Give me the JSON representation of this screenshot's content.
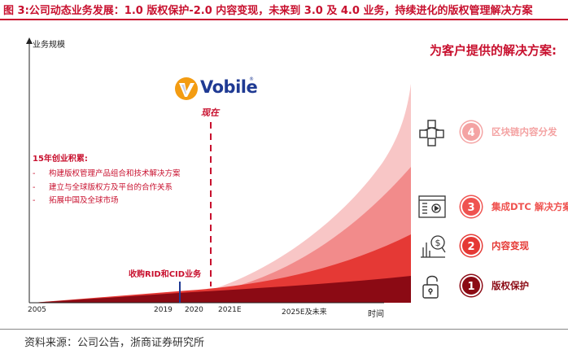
{
  "figure_title": "图 3:公司动态业务发展：1.0 版权保护-2.0 内容变现，未来到 3.0 及 4.0 业务，持续进化的版权管理解决方案",
  "source": "资料来源：公司公告，浙商证券研究所",
  "logo_text": "Vobile",
  "logo_reg": "®",
  "colors": {
    "brand_red": "#c8102e",
    "dark_red": "#8b0a14",
    "logo_blue": "#1f3a93",
    "logo_orange": "#f39c12"
  },
  "chart": {
    "y_label": "业务规模",
    "x_unit": "时间",
    "x_ticks": [
      "2005",
      "2019",
      "2020",
      "2021E",
      "2025E及未来"
    ],
    "now_label": "现在",
    "acquisition_label": "收购RID和CID业务"
  },
  "accumulation": {
    "title": "15年创业积累:",
    "items": [
      "构建版权管理产品组合和技术解决方案",
      "建立与全球版权方及平台的合作关系",
      "拓展中国及全球市场"
    ]
  },
  "solutions": {
    "title": "为客户提供的解决方案:",
    "items": [
      {
        "number": "4",
        "label": "区块链内容分发",
        "icon": "blockchain-cubes-icon",
        "color": "#f4a3a3"
      },
      {
        "number": "3",
        "label": "集成DTC 解决方案",
        "icon": "browser-play-icon",
        "color": "#ef5350"
      },
      {
        "number": "2",
        "label": "内容变现",
        "icon": "money-chart-icon",
        "color": "#e53935"
      },
      {
        "number": "1",
        "label": "版权保护",
        "icon": "open-lock-icon",
        "color": "#8b0a14"
      }
    ]
  }
}
